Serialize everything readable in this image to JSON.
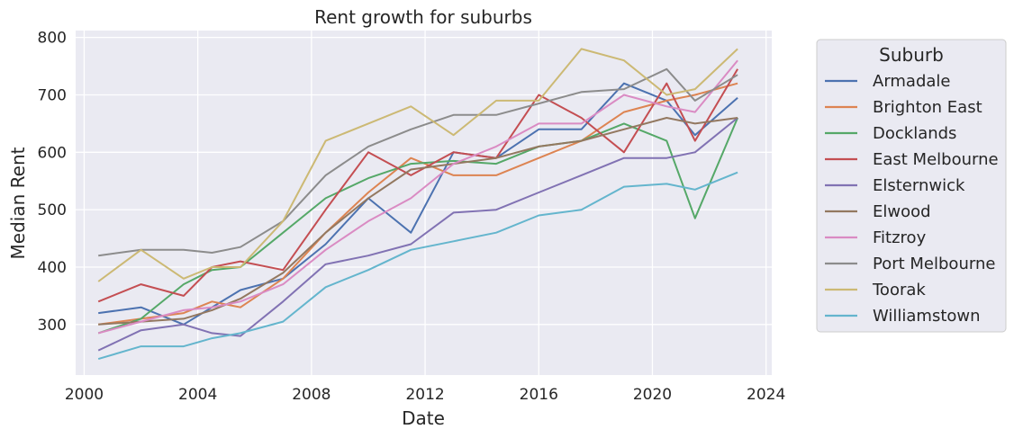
{
  "chart_data": {
    "type": "line",
    "title": "Rent growth for suburbs",
    "xlabel": "Date",
    "ylabel": "Median Rent",
    "xlim": [
      1999.7,
      2024.2
    ],
    "ylim": [
      212,
      812
    ],
    "xticks": [
      2000,
      2004,
      2008,
      2012,
      2016,
      2020,
      2024
    ],
    "yticks": [
      300,
      400,
      500,
      600,
      700,
      800
    ],
    "grid": true,
    "legend": {
      "title": "Suburb",
      "placement": "outside-right"
    },
    "series": [
      {
        "name": "Armadale",
        "color": "#4c72b0",
        "x": [
          2000.5,
          2002,
          2003.5,
          2004.5,
          2005.5,
          2007,
          2008.5,
          2010,
          2011.5,
          2013,
          2014.5,
          2016,
          2017.5,
          2019,
          2020.5,
          2021.5,
          2023
        ],
        "y": [
          320,
          330,
          300,
          330,
          360,
          380,
          440,
          520,
          460,
          600,
          590,
          640,
          640,
          720,
          690,
          630,
          695
        ]
      },
      {
        "name": "Brighton East",
        "color": "#dd8452",
        "x": [
          2000.5,
          2002,
          2003.5,
          2004.5,
          2005.5,
          2007,
          2008.5,
          2010,
          2011.5,
          2013,
          2014.5,
          2016,
          2017.5,
          2019,
          2020.5,
          2021.5,
          2023
        ],
        "y": [
          300,
          310,
          320,
          340,
          330,
          380,
          460,
          530,
          590,
          560,
          560,
          590,
          620,
          670,
          690,
          700,
          720
        ]
      },
      {
        "name": "Docklands",
        "color": "#55a868",
        "x": [
          2000.5,
          2002,
          2003.5,
          2004.5,
          2005.5,
          2007,
          2008.5,
          2010,
          2011.5,
          2013,
          2014.5,
          2016,
          2017.5,
          2019,
          2020.5,
          2021.5,
          2023
        ],
        "y": [
          285,
          310,
          370,
          395,
          400,
          460,
          520,
          555,
          580,
          585,
          580,
          610,
          620,
          650,
          620,
          485,
          660
        ]
      },
      {
        "name": "East Melbourne",
        "color": "#c44e52",
        "x": [
          2000.5,
          2002,
          2003.5,
          2004.5,
          2005.5,
          2007,
          2008.5,
          2010,
          2011.5,
          2013,
          2014.5,
          2016,
          2017.5,
          2019,
          2020.5,
          2021.5,
          2023
        ],
        "y": [
          340,
          370,
          350,
          400,
          410,
          395,
          500,
          600,
          560,
          600,
          590,
          700,
          660,
          600,
          720,
          620,
          745
        ]
      },
      {
        "name": "Elsternwick",
        "color": "#8172b3",
        "x": [
          2000.5,
          2002,
          2003.5,
          2004.5,
          2005.5,
          2007,
          2008.5,
          2010,
          2011.5,
          2013,
          2014.5,
          2016,
          2017.5,
          2019,
          2020.5,
          2021.5,
          2023
        ],
        "y": [
          255,
          290,
          300,
          285,
          280,
          340,
          405,
          420,
          440,
          495,
          500,
          530,
          560,
          590,
          590,
          600,
          660
        ]
      },
      {
        "name": "Elwood",
        "color": "#937860",
        "x": [
          2000.5,
          2002,
          2003.5,
          2004.5,
          2005.5,
          2007,
          2008.5,
          2010,
          2011.5,
          2013,
          2014.5,
          2016,
          2017.5,
          2019,
          2020.5,
          2021.5,
          2023
        ],
        "y": [
          300,
          305,
          310,
          325,
          345,
          390,
          460,
          520,
          570,
          580,
          590,
          610,
          620,
          640,
          660,
          650,
          660
        ]
      },
      {
        "name": "Fitzroy",
        "color": "#da8bc3",
        "x": [
          2000.5,
          2002,
          2003.5,
          2004.5,
          2005.5,
          2007,
          2008.5,
          2010,
          2011.5,
          2013,
          2014.5,
          2016,
          2017.5,
          2019,
          2020.5,
          2021.5,
          2023
        ],
        "y": [
          285,
          305,
          325,
          330,
          340,
          370,
          430,
          480,
          520,
          580,
          610,
          650,
          650,
          700,
          680,
          670,
          760
        ]
      },
      {
        "name": "Port Melbourne",
        "color": "#8c8c8c",
        "x": [
          2000.5,
          2002,
          2003.5,
          2004.5,
          2005.5,
          2007,
          2008.5,
          2010,
          2011.5,
          2013,
          2014.5,
          2016,
          2017.5,
          2019,
          2020.5,
          2021.5,
          2023
        ],
        "y": [
          420,
          430,
          430,
          425,
          435,
          480,
          560,
          610,
          640,
          665,
          665,
          685,
          705,
          710,
          745,
          690,
          735
        ]
      },
      {
        "name": "Toorak",
        "color": "#ccb974",
        "x": [
          2000.5,
          2002,
          2003.5,
          2004.5,
          2005.5,
          2007,
          2008.5,
          2010,
          2011.5,
          2013,
          2014.5,
          2016,
          2017.5,
          2019,
          2020.5,
          2021.5,
          2023
        ],
        "y": [
          375,
          430,
          380,
          400,
          400,
          480,
          620,
          650,
          680,
          630,
          690,
          690,
          780,
          760,
          700,
          710,
          780
        ]
      },
      {
        "name": "Williamstown",
        "color": "#64b5cd",
        "x": [
          2000.5,
          2002,
          2003.5,
          2004.5,
          2005.5,
          2007,
          2008.5,
          2010,
          2011.5,
          2013,
          2014.5,
          2016,
          2017.5,
          2019,
          2020.5,
          2021.5,
          2023
        ],
        "y": [
          240,
          262,
          262,
          276,
          285,
          305,
          365,
          395,
          430,
          445,
          460,
          490,
          500,
          540,
          545,
          535,
          565
        ]
      }
    ]
  }
}
